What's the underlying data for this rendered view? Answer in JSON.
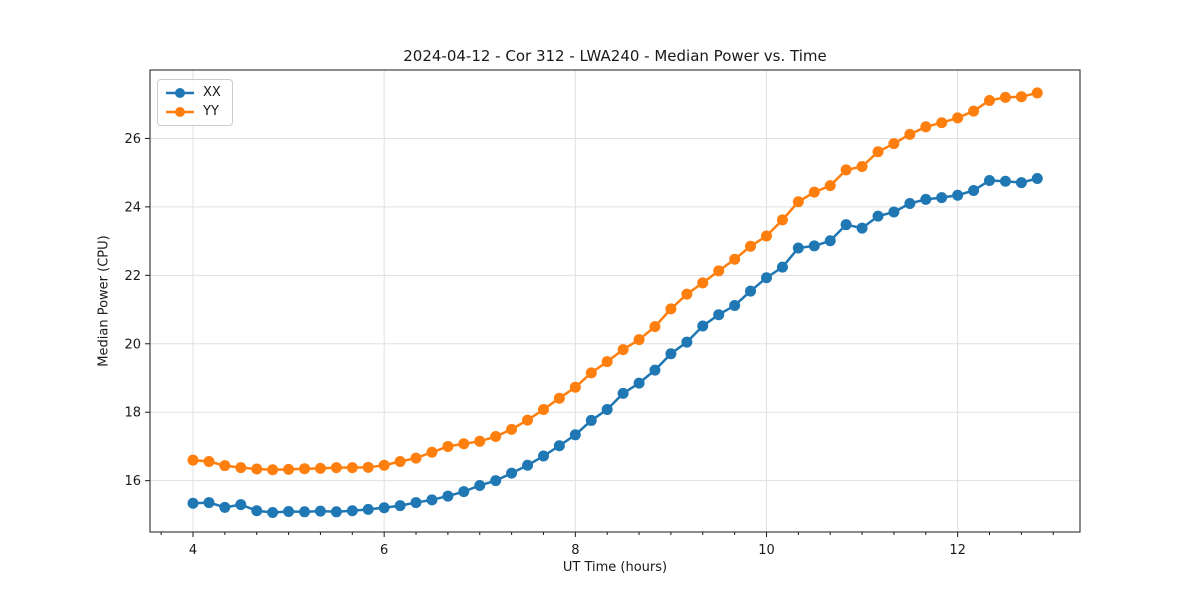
{
  "figure": {
    "background": "#ffffff"
  },
  "chart_data": {
    "type": "line",
    "title": "2024-04-12 - Cor 312 - LWA240 - Median Power vs. Time",
    "xlabel": "UT Time (hours)",
    "ylabel": "Median Power (CPU)",
    "xlim": [
      3.55,
      13.28
    ],
    "ylim": [
      14.5,
      28.0
    ],
    "x_major_ticks": [
      4,
      6,
      8,
      10,
      12
    ],
    "x_minor_tick_step": 0.33333,
    "y_major_ticks": [
      16,
      18,
      20,
      22,
      24,
      26
    ],
    "grid": "major",
    "grid_color": "#e0e0e0",
    "legend_position": "upper-left",
    "marker": "circle",
    "x": [
      4.0,
      4.167,
      4.333,
      4.5,
      4.667,
      4.833,
      5.0,
      5.167,
      5.333,
      5.5,
      5.667,
      5.833,
      6.0,
      6.167,
      6.333,
      6.5,
      6.667,
      6.833,
      7.0,
      7.167,
      7.333,
      7.5,
      7.667,
      7.833,
      8.0,
      8.167,
      8.333,
      8.5,
      8.667,
      8.833,
      9.0,
      9.167,
      9.333,
      9.5,
      9.667,
      9.833,
      10.0,
      10.167,
      10.333,
      10.5,
      10.667,
      10.833,
      11.0,
      11.167,
      11.333,
      11.5,
      11.667,
      11.833,
      12.0,
      12.167,
      12.333,
      12.5,
      12.667,
      12.833
    ],
    "series": [
      {
        "name": "XX",
        "color": "#1f77b4",
        "values": [
          15.34,
          15.36,
          15.22,
          15.3,
          15.12,
          15.07,
          15.1,
          15.09,
          15.11,
          15.09,
          15.12,
          15.16,
          15.21,
          15.27,
          15.36,
          15.44,
          15.55,
          15.68,
          15.86,
          16.0,
          16.22,
          16.45,
          16.72,
          17.02,
          17.34,
          17.76,
          18.08,
          18.55,
          18.85,
          19.23,
          19.71,
          20.05,
          20.52,
          20.85,
          21.12,
          21.54,
          21.93,
          22.24,
          22.8,
          22.86,
          23.01,
          23.48,
          23.38,
          23.73,
          23.85,
          24.1,
          24.22,
          24.27,
          24.34,
          24.48,
          24.77,
          24.75,
          24.71,
          24.83
        ]
      },
      {
        "name": "YY",
        "color": "#ff7f0e",
        "values": [
          16.6,
          16.56,
          16.44,
          16.38,
          16.34,
          16.32,
          16.33,
          16.35,
          16.36,
          16.38,
          16.38,
          16.39,
          16.45,
          16.56,
          16.66,
          16.83,
          17.0,
          17.08,
          17.15,
          17.29,
          17.5,
          17.77,
          18.08,
          18.41,
          18.73,
          19.15,
          19.48,
          19.83,
          20.12,
          20.5,
          21.02,
          21.45,
          21.78,
          22.13,
          22.47,
          22.85,
          23.15,
          23.62,
          24.15,
          24.43,
          24.62,
          25.08,
          25.18,
          25.61,
          25.85,
          26.12,
          26.34,
          26.46,
          26.6,
          26.8,
          27.11,
          27.2,
          27.22,
          27.33
        ]
      }
    ]
  }
}
